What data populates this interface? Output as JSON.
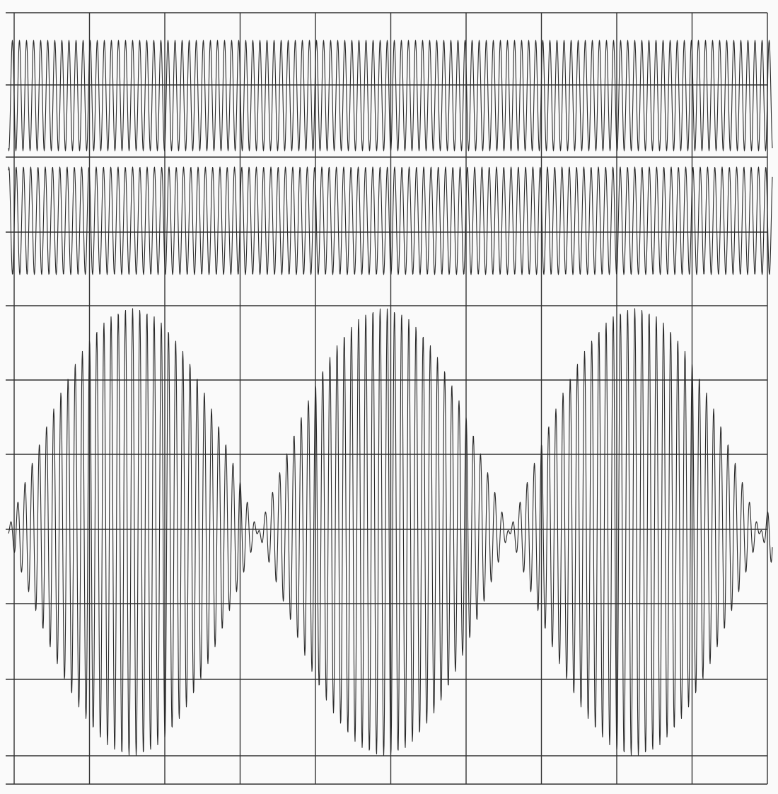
{
  "chart_data": {
    "type": "waveform",
    "grid": true
  }
}
